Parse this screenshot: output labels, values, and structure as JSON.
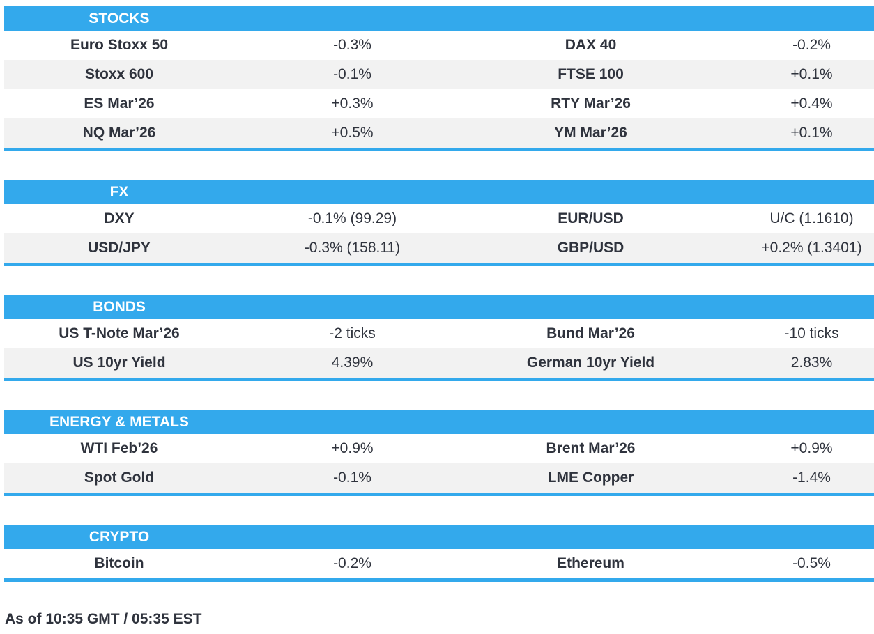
{
  "colors": {
    "accent": "#33A9EC",
    "stripe": "#F2F2F2",
    "text": "#2F333D",
    "header_text": "#FFFFFF",
    "bg": "#FFFFFF"
  },
  "sections": [
    {
      "title": "STOCKS",
      "rows": [
        [
          "Euro Stoxx 50",
          "-0.3%",
          "DAX 40",
          "-0.2%"
        ],
        [
          "Stoxx 600",
          "-0.1%",
          "FTSE 100",
          "+0.1%"
        ],
        [
          "ES Mar’26",
          "+0.3%",
          "RTY Mar’26",
          "+0.4%"
        ],
        [
          "NQ Mar’26",
          "+0.5%",
          "YM Mar’26",
          "+0.1%"
        ]
      ]
    },
    {
      "title": "FX",
      "rows": [
        [
          "DXY",
          "-0.1% (99.29)",
          "EUR/USD",
          "U/C (1.1610)"
        ],
        [
          "USD/JPY",
          "-0.3% (158.11)",
          "GBP/USD",
          "+0.2% (1.3401)"
        ]
      ]
    },
    {
      "title": "BONDS",
      "rows": [
        [
          "US T-Note Mar’26",
          "-2 ticks",
          "Bund Mar’26",
          "-10 ticks"
        ],
        [
          "US 10yr Yield",
          "4.39%",
          "German 10yr Yield",
          "2.83%"
        ]
      ]
    },
    {
      "title": "ENERGY & METALS",
      "rows": [
        [
          "WTI Feb’26",
          "+0.9%",
          "Brent Mar’26",
          "+0.9%"
        ],
        [
          "Spot Gold",
          "-0.1%",
          "LME Copper",
          "-1.4%"
        ]
      ]
    },
    {
      "title": "CRYPTO",
      "rows": [
        [
          "Bitcoin",
          "-0.2%",
          "Ethereum",
          "-0.5%"
        ]
      ]
    }
  ],
  "footer": {
    "as_of": "As of 10:35 GMT / 05:35 EST"
  }
}
